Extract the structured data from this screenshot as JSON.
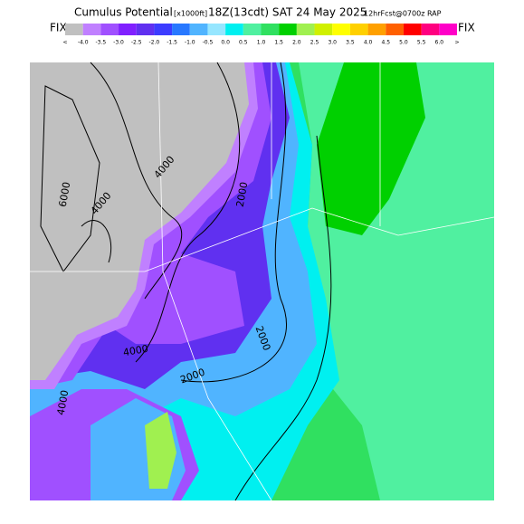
{
  "header": {
    "title": "Cumulus Potential",
    "units": "[x1000ft]",
    "valid": "18Z(13cdt) SAT 24 May 2025",
    "forecast": "12hrFcst@0700z RAP"
  },
  "colorbar": {
    "left_label": "FIX",
    "right_label": "FIX",
    "labels": [
      "<",
      "-4.0",
      "-3.5",
      "-3.0",
      "-2.5",
      "-2.0",
      "-1.5",
      "-1.0",
      "-0.5",
      "0.0",
      "0.5",
      "1.0",
      "1.5",
      "2.0",
      "2.5",
      "3.0",
      "3.5",
      "4.0",
      "4.5",
      "5.0",
      "5.5",
      "6.0",
      ">"
    ],
    "colors": [
      "#c0c0c0",
      "#c080ff",
      "#a050ff",
      "#8020ff",
      "#6030f0",
      "#3c3cff",
      "#2878ff",
      "#50b4ff",
      "#96e6ff",
      "#00f0f0",
      "#50f0a0",
      "#30e060",
      "#00d000",
      "#a0f050",
      "#d0f000",
      "#ffff00",
      "#ffd000",
      "#ffa000",
      "#ff6000",
      "#ff0000",
      "#ff0080",
      "#ff00c8"
    ]
  },
  "contours": [
    {
      "label": "6000"
    },
    {
      "label": "4000"
    },
    {
      "label": "4000"
    },
    {
      "label": "2000"
    },
    {
      "label": "4000"
    },
    {
      "label": "2000"
    },
    {
      "label": "2000"
    },
    {
      "label": "4000"
    }
  ]
}
